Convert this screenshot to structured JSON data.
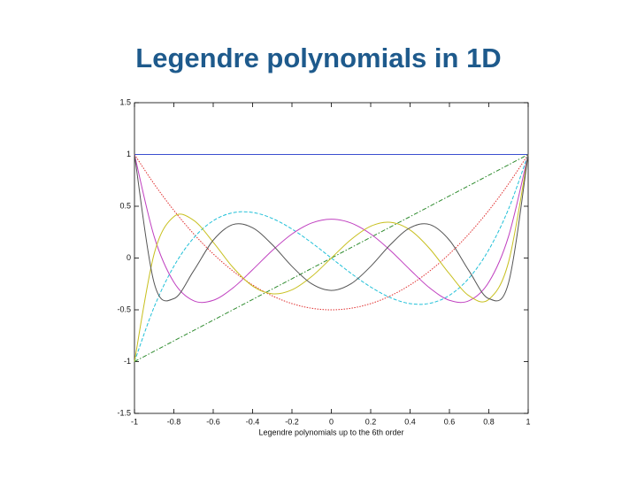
{
  "chart_data": {
    "type": "line",
    "title": "Legendre polynomials in 1D",
    "xlabel": "Legendre polynomials up to the 6th order",
    "x": [
      -1,
      -0.9,
      -0.8,
      -0.7,
      -0.6,
      -0.5,
      -0.4,
      -0.3,
      -0.2,
      -0.1,
      0,
      0.1,
      0.2,
      0.3,
      0.4,
      0.5,
      0.6,
      0.7,
      0.8,
      0.9,
      1
    ],
    "xlim": [
      -1,
      1
    ],
    "xticks": [
      -1,
      -0.8,
      -0.6,
      -0.4,
      -0.2,
      0,
      0.2,
      0.4,
      0.6,
      0.8,
      1
    ],
    "ylim": [
      -1.5,
      1.5
    ],
    "yticks": [
      -1.5,
      -1,
      -0.5,
      0,
      0.5,
      1,
      1.5
    ],
    "grid": false,
    "series": [
      {
        "color": "#3b4fd0",
        "dash": "solid",
        "values": [
          1,
          1,
          1,
          1,
          1,
          1,
          1,
          1,
          1,
          1,
          1,
          1,
          1,
          1,
          1,
          1,
          1,
          1,
          1,
          1,
          1
        ]
      },
      {
        "color": "#2e8b2e",
        "dash": "dashdot",
        "values": [
          -1,
          -0.9,
          -0.8,
          -0.7,
          -0.6,
          -0.5,
          -0.4,
          -0.3,
          -0.2,
          -0.1,
          0,
          0.1,
          0.2,
          0.3,
          0.4,
          0.5,
          0.6,
          0.7,
          0.8,
          0.9,
          1
        ]
      },
      {
        "color": "#e03030",
        "dash": "dotted",
        "values": [
          1,
          0.715,
          0.46,
          0.235,
          0.04,
          -0.125,
          -0.26,
          -0.365,
          -0.44,
          -0.485,
          -0.5,
          -0.485,
          -0.44,
          -0.365,
          -0.26,
          -0.125,
          0.04,
          0.235,
          0.46,
          0.715,
          1
        ]
      },
      {
        "color": "#20c0d8",
        "dash": "dashed",
        "values": [
          -1,
          -0.4725,
          -0.08,
          0.1925,
          0.36,
          0.4375,
          0.44,
          0.3825,
          0.28,
          0.1475,
          0,
          -0.1475,
          -0.28,
          -0.3825,
          -0.44,
          -0.4375,
          -0.36,
          -0.1925,
          0.08,
          0.4725,
          1
        ]
      },
      {
        "color": "#c040c0",
        "dash": "solid",
        "values": [
          1,
          0.2079,
          -0.233,
          -0.4121,
          -0.408,
          -0.2891,
          -0.113,
          0.0729,
          0.232,
          0.3379,
          0.375,
          0.3379,
          0.232,
          0.0729,
          -0.113,
          -0.2891,
          -0.408,
          -0.4121,
          -0.233,
          0.2079,
          1
        ]
      },
      {
        "color": "#c8c020",
        "dash": "solid",
        "values": [
          -1,
          0.0411,
          0.3995,
          0.3652,
          0.1526,
          -0.0898,
          -0.2706,
          -0.3454,
          -0.3075,
          -0.1788,
          0,
          0.1788,
          0.3075,
          0.3454,
          0.2706,
          0.0898,
          -0.1526,
          -0.3652,
          -0.3995,
          -0.0411,
          1
        ]
      },
      {
        "color": "#555555",
        "dash": "solid",
        "values": [
          1,
          -0.2412,
          -0.3918,
          -0.1253,
          0.1721,
          0.3232,
          0.2926,
          0.1292,
          -0.0806,
          -0.2488,
          -0.3125,
          -0.2488,
          -0.0806,
          0.1292,
          0.2926,
          0.3232,
          0.1721,
          -0.1253,
          -0.3918,
          -0.2412,
          1
        ]
      }
    ]
  }
}
